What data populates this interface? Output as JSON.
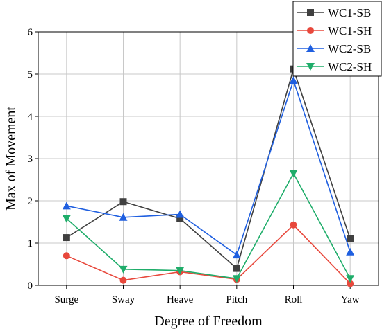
{
  "chart_data": {
    "type": "line",
    "title": "",
    "xlabel": "Degree of Freedom",
    "ylabel": "Max of Movement",
    "categories": [
      "Surge",
      "Sway",
      "Heave",
      "Pitch",
      "Roll",
      "Yaw"
    ],
    "ylim": [
      0,
      6
    ],
    "yticks": [
      0,
      1,
      2,
      3,
      4,
      5,
      6
    ],
    "grid": true,
    "legend_position": "top-right",
    "series": [
      {
        "name": "WC1-SB",
        "color": "#404040",
        "marker": "square",
        "values": [
          1.13,
          1.98,
          1.58,
          0.4,
          5.12,
          1.1
        ]
      },
      {
        "name": "WC1-SH",
        "color": "#e8483c",
        "marker": "circle",
        "values": [
          0.7,
          0.12,
          0.32,
          0.14,
          1.43,
          0.04
        ]
      },
      {
        "name": "WC2-SB",
        "color": "#1f5fe0",
        "marker": "triangle-up",
        "values": [
          1.88,
          1.61,
          1.68,
          0.72,
          4.85,
          0.79
        ]
      },
      {
        "name": "WC2-SH",
        "color": "#1fad6a",
        "marker": "triangle-down",
        "values": [
          1.58,
          0.38,
          0.35,
          0.16,
          2.65,
          0.16
        ]
      }
    ],
    "annotations": []
  }
}
